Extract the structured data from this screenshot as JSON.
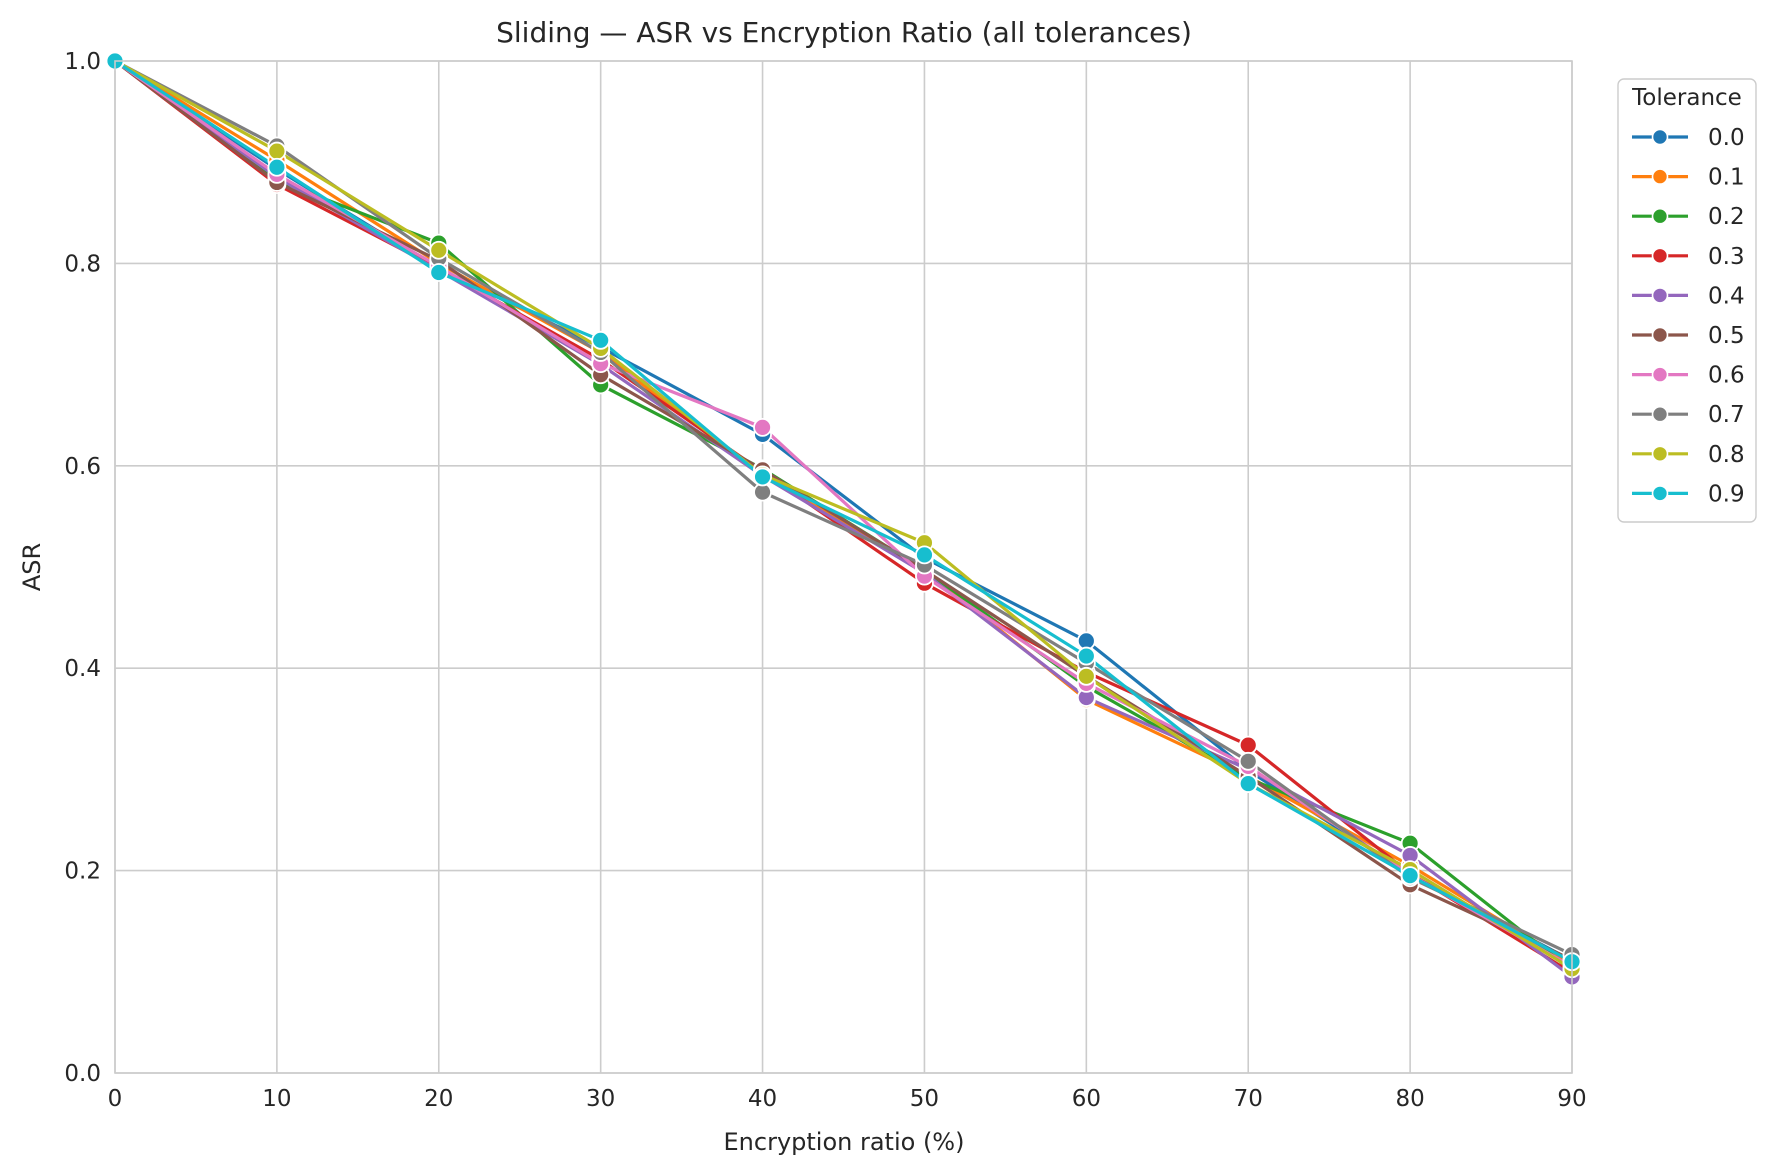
{
  "chart_data": {
    "type": "line",
    "title": "Sliding — ASR vs Encryption Ratio (all tolerances)",
    "xlabel": "Encryption ratio (%)",
    "ylabel": "ASR",
    "xlim": [
      0,
      90
    ],
    "ylim": [
      0.0,
      1.0
    ],
    "x_ticks": [
      "0",
      "10",
      "20",
      "30",
      "40",
      "50",
      "60",
      "70",
      "80",
      "90"
    ],
    "y_ticks": [
      "0.0",
      "0.2",
      "0.4",
      "0.6",
      "0.8",
      "1.0"
    ],
    "grid": true,
    "legend_title": "Tolerance",
    "legend_position": "outside top-right",
    "x": [
      0,
      10,
      20,
      30,
      40,
      50,
      60,
      70,
      80,
      90
    ],
    "series": [
      {
        "name": "0.0",
        "color": "#1f77b4",
        "values": [
          1.0,
          0.893,
          0.795,
          0.717,
          0.631,
          0.509,
          0.427,
          0.299,
          0.196,
          0.111
        ]
      },
      {
        "name": "0.1",
        "color": "#ff7f0e",
        "values": [
          1.0,
          0.902,
          0.8,
          0.712,
          0.59,
          0.498,
          0.369,
          0.293,
          0.205,
          0.108
        ]
      },
      {
        "name": "0.2",
        "color": "#2ca02c",
        "values": [
          1.0,
          0.882,
          0.82,
          0.68,
          0.597,
          0.497,
          0.382,
          0.291,
          0.227,
          0.101
        ]
      },
      {
        "name": "0.3",
        "color": "#d62728",
        "values": [
          1.0,
          0.878,
          0.795,
          0.705,
          0.594,
          0.484,
          0.396,
          0.324,
          0.197,
          0.099
        ]
      },
      {
        "name": "0.4",
        "color": "#9467bd",
        "values": [
          1.0,
          0.885,
          0.793,
          0.7,
          0.59,
          0.494,
          0.371,
          0.3,
          0.215,
          0.095
        ]
      },
      {
        "name": "0.5",
        "color": "#8c564b",
        "values": [
          1.0,
          0.88,
          0.803,
          0.69,
          0.596,
          0.497,
          0.392,
          0.293,
          0.186,
          0.112
        ]
      },
      {
        "name": "0.6",
        "color": "#e377c2",
        "values": [
          1.0,
          0.888,
          0.797,
          0.701,
          0.638,
          0.491,
          0.385,
          0.303,
          0.196,
          0.105
        ]
      },
      {
        "name": "0.7",
        "color": "#7f7f7f",
        "values": [
          1.0,
          0.916,
          0.805,
          0.712,
          0.574,
          0.502,
          0.405,
          0.308,
          0.193,
          0.117
        ]
      },
      {
        "name": "0.8",
        "color": "#bcbd22",
        "values": [
          1.0,
          0.911,
          0.813,
          0.716,
          0.591,
          0.524,
          0.392,
          0.286,
          0.201,
          0.103
        ]
      },
      {
        "name": "0.9",
        "color": "#17becf",
        "values": [
          1.0,
          0.895,
          0.791,
          0.724,
          0.589,
          0.512,
          0.412,
          0.286,
          0.195,
          0.11
        ]
      }
    ]
  }
}
